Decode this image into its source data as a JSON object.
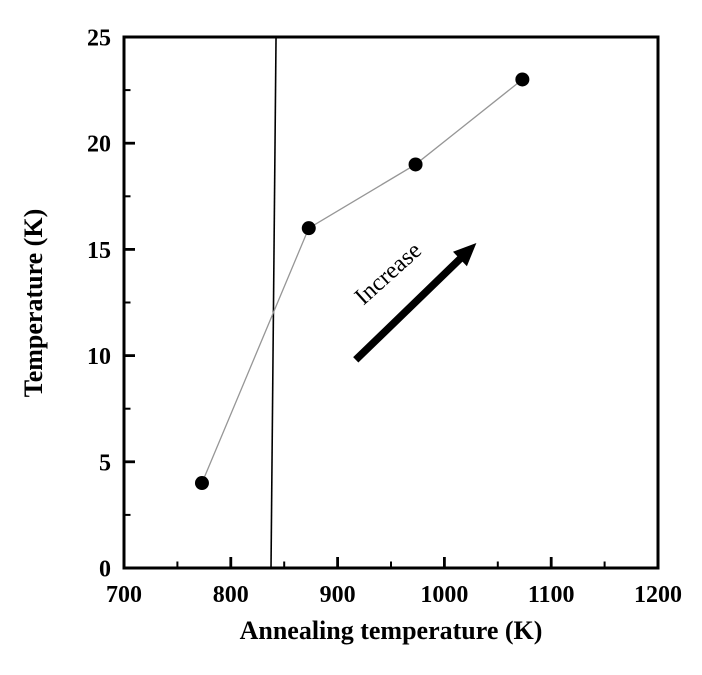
{
  "page": {
    "background_color": "#ffffff"
  },
  "chart_data": {
    "type": "scatter",
    "title": "",
    "xlabel": "Annealing temperature (K)",
    "ylabel": "Temperature (K)",
    "x": [
      773,
      873,
      973,
      1073
    ],
    "y": [
      4,
      16,
      19,
      23
    ],
    "xlim": [
      700,
      1200
    ],
    "ylim": [
      0,
      25
    ],
    "x_ticks": [
      700,
      800,
      900,
      1000,
      1100,
      1200
    ],
    "y_ticks": [
      0,
      5,
      10,
      15,
      20,
      25
    ],
    "x_minor_step": 50,
    "y_minor_step": 2.5,
    "grid": false,
    "legend": null,
    "vline_x": 840,
    "series_line_color": "#969696",
    "marker_color": "#000000",
    "marker_radius": 7,
    "frame_color": "#000000",
    "annotation": {
      "text": "Increase",
      "x": 952,
      "y": 13.6,
      "rotate_deg": -42,
      "arrow": {
        "x1": 917,
        "y1": 9.8,
        "x2": 1030,
        "y2": 15.3,
        "color": "#000000"
      }
    }
  }
}
